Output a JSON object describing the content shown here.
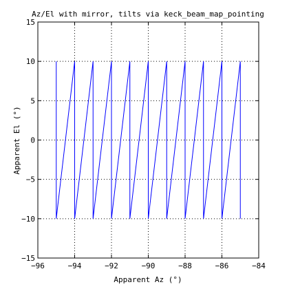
{
  "chart_data": {
    "type": "line",
    "title": "Az/El with mirror, tilts via keck_beam_map_pointing",
    "xlabel": "Apparent Az (°)",
    "ylabel": "Apparent El (°)",
    "xlim": [
      -96,
      -84
    ],
    "ylim": [
      -15,
      15
    ],
    "x_ticks": [
      -96,
      -94,
      -92,
      -90,
      -88,
      -86,
      -84
    ],
    "y_ticks": [
      -15,
      -10,
      -5,
      0,
      5,
      10,
      15
    ],
    "x_tick_labels": [
      "−96",
      "−94",
      "−92",
      "−90",
      "−88",
      "−86",
      "−84"
    ],
    "y_tick_labels": [
      "−15",
      "−10",
      "−5",
      "0",
      "5",
      "10",
      "15"
    ],
    "grid": true,
    "series": [
      {
        "color": "#0000ff",
        "x": [
          -95,
          -95,
          -94,
          -94,
          -93,
          -93,
          -92,
          -92,
          -91,
          -91,
          -90,
          -90,
          -89,
          -89,
          -88,
          -88,
          -87,
          -87,
          -86,
          -86,
          -85,
          -85
        ],
        "y": [
          10,
          -10,
          10,
          -10,
          10,
          -10,
          10,
          -10,
          10,
          -10,
          10,
          -10,
          10,
          -10,
          10,
          -10,
          10,
          -10,
          10,
          -10,
          10,
          -10
        ]
      }
    ]
  }
}
